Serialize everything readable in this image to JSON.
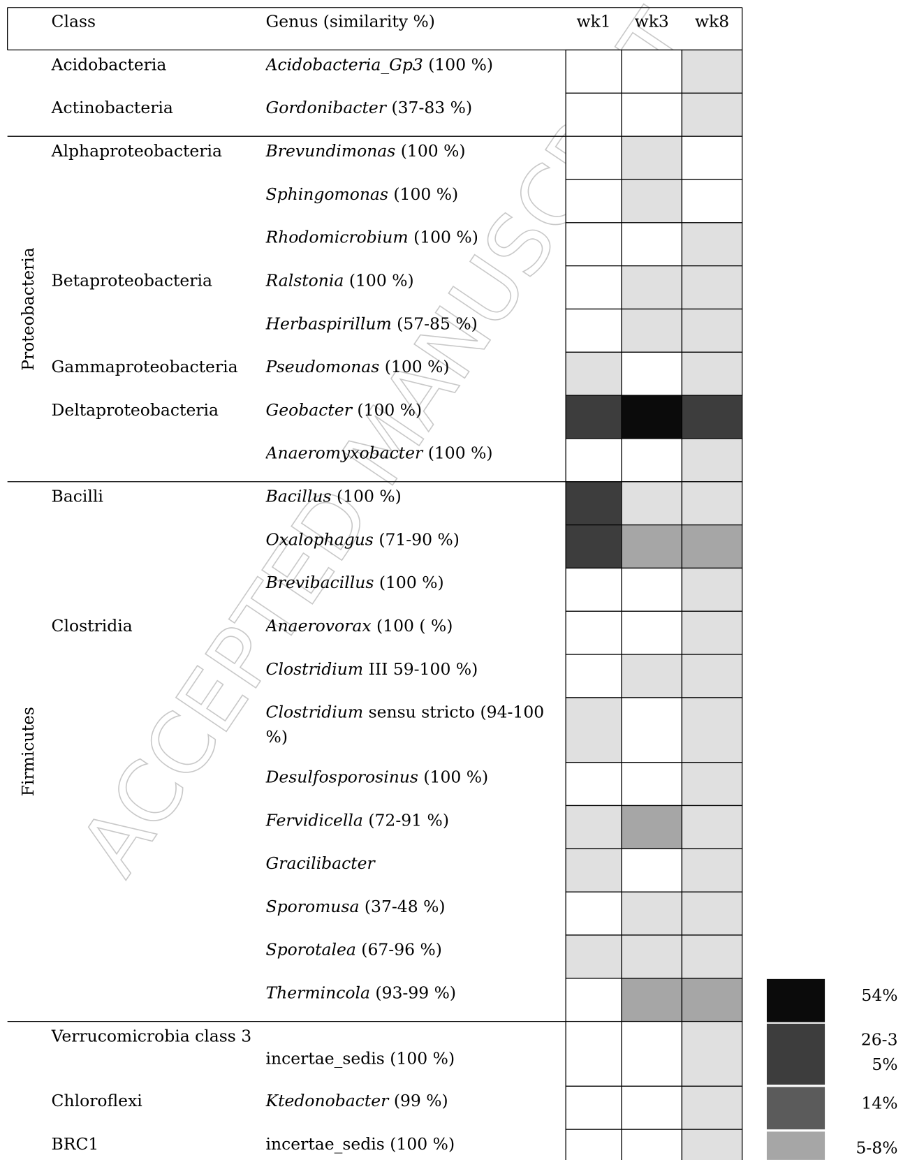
{
  "header": {
    "class": "Class",
    "genus": "Genus (similarity %)",
    "weeks": [
      "wk1",
      "wk3",
      "wk8"
    ]
  },
  "groups": [
    "Proteobacteria",
    "Firmicutes"
  ],
  "rows": [
    {
      "class": "Acidobacteria",
      "genus": "Acidobacteria_Gp3",
      "note": " (100 %)",
      "cells": [
        "#ffffff",
        "#ffffff",
        "#e0e0e0"
      ]
    },
    {
      "class": "Actinobacteria",
      "genus": "Gordonibacter",
      "note": " (37-83 %)",
      "cells": [
        "#ffffff",
        "#ffffff",
        "#e0e0e0"
      ]
    },
    {
      "class": "Alphaproteobacteria",
      "genus": "Brevundimonas",
      "note": " (100 %)",
      "cells": [
        "#ffffff",
        "#e0e0e0",
        "#ffffff"
      ]
    },
    {
      "genus": "Sphingomonas",
      "note": " (100 %)",
      "cells": [
        "#ffffff",
        "#e0e0e0",
        "#ffffff"
      ]
    },
    {
      "genus": "Rhodomicrobium",
      "note": " (100 %)",
      "cells": [
        "#ffffff",
        "#ffffff",
        "#e0e0e0"
      ]
    },
    {
      "class": "Betaproteobacteria",
      "genus": "Ralstonia",
      "note": " (100 %)",
      "cells": [
        "#ffffff",
        "#e0e0e0",
        "#e0e0e0"
      ]
    },
    {
      "genus": "Herbaspirillum",
      "note": " (57-85 %)",
      "cells": [
        "#ffffff",
        "#e0e0e0",
        "#e0e0e0"
      ]
    },
    {
      "class": "Gammaproteobacteria",
      "genus": "Pseudomonas",
      "note": " (100 %)",
      "cells": [
        "#e0e0e0",
        "#ffffff",
        "#e0e0e0"
      ]
    },
    {
      "class": "Deltaproteobacteria",
      "genus": "Geobacter",
      "note": " (100 %)",
      "cells": [
        "#3d3d3d",
        "#0b0b0b",
        "#3d3d3d"
      ]
    },
    {
      "genus": "Anaeromyxobacter",
      "note": " (100 %)",
      "cells": [
        "#ffffff",
        "#ffffff",
        "#e0e0e0"
      ]
    },
    {
      "class": "Bacilli",
      "genus": "Bacillus",
      "note": " (100 %)",
      "cells": [
        "#3d3d3d",
        "#e0e0e0",
        "#e0e0e0"
      ]
    },
    {
      "genus": "Oxalophagus",
      "note": " (71-90 %)",
      "cells": [
        "#3d3d3d",
        "#a6a6a6",
        "#a6a6a6"
      ]
    },
    {
      "genus": "Brevibacillus",
      "note": " (100 %)",
      "cells": [
        "#ffffff",
        "#ffffff",
        "#e0e0e0"
      ]
    },
    {
      "class": "Clostridia",
      "genus": "Anaerovorax",
      "note": " (100 ( %)",
      "cells": [
        "#ffffff",
        "#ffffff",
        "#e0e0e0"
      ]
    },
    {
      "genus": "Clostridium",
      "note": " III 59-100 %)",
      "cells": [
        "#ffffff",
        "#e0e0e0",
        "#e0e0e0"
      ]
    },
    {
      "genus": "Clostridium",
      "note": " sensu stricto (94-100 %)",
      "cells": [
        "#e0e0e0",
        "#ffffff",
        "#e0e0e0"
      ]
    },
    {
      "genus": "Desulfosporosinus",
      "note": " (100 %)",
      "cells": [
        "#ffffff",
        "#ffffff",
        "#e0e0e0"
      ]
    },
    {
      "genus": "Fervidicella",
      "note": " (72-91 %)",
      "cells": [
        "#e0e0e0",
        "#a6a6a6",
        "#e0e0e0"
      ]
    },
    {
      "genus": "Gracilibacter",
      "cells": [
        "#e0e0e0",
        "#ffffff",
        "#e0e0e0"
      ]
    },
    {
      "genus": "Sporomusa",
      "note": " (37-48 %)",
      "cells": [
        "#ffffff",
        "#e0e0e0",
        "#e0e0e0"
      ]
    },
    {
      "genus": "Sporotalea",
      "note": " (67-96 %)",
      "cells": [
        "#e0e0e0",
        "#e0e0e0",
        "#e0e0e0"
      ]
    },
    {
      "genus": "Thermincola",
      "note": " (93-99 %)",
      "cells": [
        "#ffffff",
        "#a6a6a6",
        "#a6a6a6"
      ]
    },
    {
      "class": "Verrucomicrobia class 3",
      "plain": "incertae_sedis (100 %)",
      "cells": [
        "#ffffff",
        "#ffffff",
        "#e0e0e0"
      ]
    },
    {
      "class": "Chloroflexi",
      "genus": "Ktedonobacter",
      "note": " (99 %)",
      "cells": [
        "#ffffff",
        "#ffffff",
        "#e0e0e0"
      ]
    },
    {
      "class": "BRC1",
      "plain": "incertae_sedis (100 %)",
      "cells": [
        "#ffffff",
        "#ffffff",
        "#e0e0e0"
      ]
    }
  ],
  "legend": [
    {
      "color": "#0b0b0b",
      "label": "54%"
    },
    {
      "color": "#3d3d3d",
      "label": "26-35%"
    },
    {
      "color": "#5b5b5b",
      "label": "14%"
    },
    {
      "color": "#a6a6a6",
      "label": "5-8%"
    }
  ],
  "watermark": "ACCEPTED MANUSCRIPT"
}
